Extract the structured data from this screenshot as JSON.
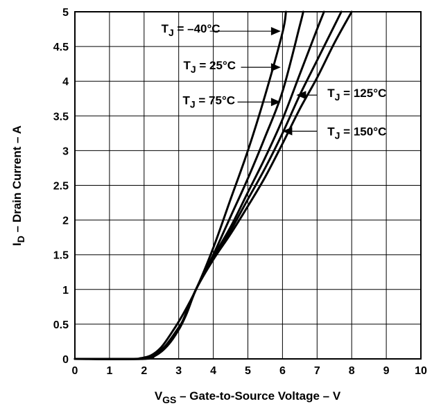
{
  "chart_data": {
    "type": "line",
    "title": "",
    "xlabel": {
      "main": "V",
      "sub": "GS",
      "rest": " – Gate-to-Source Voltage – V"
    },
    "ylabel": {
      "main": "I",
      "sub": "D",
      "rest": " – Drain Current – A"
    },
    "xlim": [
      0,
      10
    ],
    "ylim": [
      0,
      5
    ],
    "grid": true,
    "x_ticks": [
      "0",
      "1",
      "2",
      "3",
      "4",
      "5",
      "6",
      "7",
      "8",
      "9",
      "10"
    ],
    "y_ticks": [
      "0",
      "0.5",
      "1",
      "1.5",
      "2",
      "2.5",
      "3",
      "3.5",
      "4",
      "4.5",
      "5"
    ],
    "series": [
      {
        "name": "T_J = –40°C",
        "label": {
          "main": "T",
          "sub": "J",
          "rest": " = –40°C"
        },
        "x": [
          0,
          1.6,
          1.9,
          2.2,
          2.5,
          2.8,
          3.1,
          3.5,
          4.0,
          4.5,
          5.0,
          5.5,
          6.0,
          6.1
        ],
        "y": [
          0,
          0,
          0.01,
          0.05,
          0.17,
          0.38,
          0.62,
          1.0,
          1.6,
          2.3,
          3.0,
          3.8,
          4.7,
          5.0
        ]
      },
      {
        "name": "T_J = 25°C",
        "label": {
          "main": "T",
          "sub": "J",
          "rest": " = 25°C"
        },
        "x": [
          0,
          1.7,
          2.0,
          2.3,
          2.6,
          2.9,
          3.2,
          3.5,
          4.0,
          4.5,
          5.0,
          5.5,
          6.0,
          6.5,
          6.6
        ],
        "y": [
          0,
          0,
          0.01,
          0.06,
          0.18,
          0.38,
          0.62,
          1.0,
          1.5,
          2.05,
          2.6,
          3.2,
          3.85,
          4.8,
          5.0
        ]
      },
      {
        "name": "T_J = 75°C",
        "label": {
          "main": "T",
          "sub": "J",
          "rest": " = 75°C"
        },
        "x": [
          0,
          1.8,
          2.1,
          2.4,
          2.7,
          3.0,
          3.2,
          3.5,
          4.0,
          4.5,
          5.0,
          5.5,
          6.0,
          6.5,
          7.0,
          7.2
        ],
        "y": [
          0,
          0,
          0.02,
          0.08,
          0.22,
          0.42,
          0.62,
          1.0,
          1.47,
          1.9,
          2.4,
          2.9,
          3.45,
          4.1,
          4.75,
          5.0
        ]
      },
      {
        "name": "T_J = 125°C",
        "label": {
          "main": "T",
          "sub": "J",
          "rest": " = 125°C"
        },
        "x": [
          0,
          1.9,
          2.2,
          2.5,
          2.8,
          3.1,
          3.5,
          4.0,
          4.5,
          5.0,
          5.5,
          6.0,
          6.5,
          7.0,
          7.5,
          7.7
        ],
        "y": [
          0,
          0,
          0.03,
          0.11,
          0.27,
          0.53,
          1.0,
          1.45,
          1.85,
          2.3,
          2.75,
          3.25,
          3.8,
          4.3,
          4.8,
          5.0
        ]
      },
      {
        "name": "T_J = 150°C",
        "label": {
          "main": "T",
          "sub": "J",
          "rest": " = 150°C"
        },
        "x": [
          0,
          2.0,
          2.3,
          2.6,
          2.9,
          3.2,
          3.5,
          4.0,
          4.5,
          5.0,
          5.5,
          6.0,
          6.5,
          7.0,
          7.5,
          8.0
        ],
        "y": [
          0,
          0,
          0.04,
          0.15,
          0.34,
          0.62,
          1.0,
          1.43,
          1.8,
          2.2,
          2.62,
          3.1,
          3.6,
          4.05,
          4.55,
          5.0
        ]
      }
    ],
    "annotations": [
      {
        "series": 0,
        "label_x": 4.2,
        "label_y": 4.7,
        "align": "end",
        "arrow_from": [
          3.9,
          4.72
        ],
        "arrow_to": [
          5.95,
          4.72
        ]
      },
      {
        "series": 1,
        "label_x": 4.65,
        "label_y": 4.17,
        "align": "end",
        "arrow_from": [
          4.8,
          4.2
        ],
        "arrow_to": [
          5.95,
          4.2
        ]
      },
      {
        "series": 2,
        "label_x": 4.63,
        "label_y": 3.67,
        "align": "end",
        "arrow_from": [
          4.7,
          3.7
        ],
        "arrow_to": [
          5.95,
          3.7
        ]
      },
      {
        "series": 3,
        "label_x": 7.3,
        "label_y": 3.77,
        "align": "start",
        "arrow_from": [
          7.0,
          3.8
        ],
        "arrow_to": [
          6.4,
          3.8
        ]
      },
      {
        "series": 4,
        "label_x": 7.3,
        "label_y": 3.22,
        "align": "start",
        "arrow_from": [
          7.0,
          3.28
        ],
        "arrow_to": [
          6.0,
          3.28
        ]
      }
    ]
  }
}
